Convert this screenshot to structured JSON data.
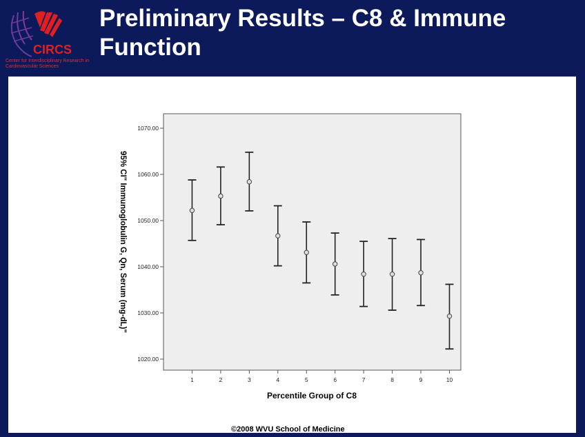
{
  "slide": {
    "title": "Preliminary Results – C8 & Immune Function",
    "logo_text": "CIRCS",
    "logo_subtext": "Center for Interdisciplinary Research in Cardiovascular Sciences",
    "footer": "©2008 WVU School of Medicine"
  },
  "chart_data": {
    "type": "errorbar",
    "title": "",
    "xlabel": "Percentile Group of C8",
    "ylabel": "95% CI\" Immunoglobulin G, Qn, Serum (mg-dL)\"",
    "categories": [
      "1",
      "2",
      "3",
      "4",
      "5",
      "6",
      "7",
      "8",
      "9",
      "10"
    ],
    "mean": [
      1052.2,
      1055.3,
      1058.4,
      1046.7,
      1043.1,
      1040.6,
      1038.4,
      1038.4,
      1038.7,
      1029.3
    ],
    "upper": [
      1058.8,
      1061.6,
      1064.8,
      1053.2,
      1049.7,
      1047.3,
      1045.5,
      1046.1,
      1045.9,
      1036.2
    ],
    "lower": [
      1045.7,
      1049.1,
      1052.1,
      1040.2,
      1036.5,
      1033.9,
      1031.4,
      1030.6,
      1031.6,
      1022.2
    ],
    "ylim": [
      1020,
      1070
    ],
    "yticks": [
      "1020.00",
      "1030.00",
      "1040.00",
      "1050.00",
      "1060.00",
      "1070.00"
    ],
    "ytick_values": [
      1020,
      1030,
      1040,
      1050,
      1060,
      1070
    ],
    "grid": false,
    "plot_background": "#eeeeee"
  }
}
